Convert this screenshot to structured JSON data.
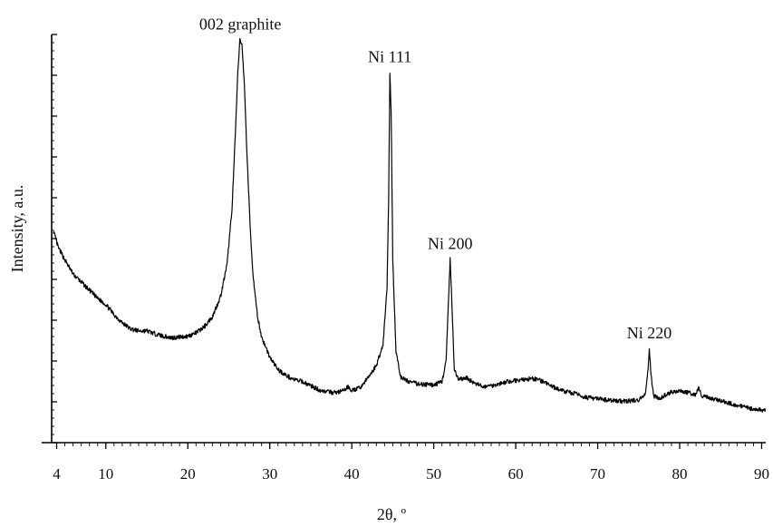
{
  "chart_data": {
    "type": "line",
    "xlabel": "2θ, º",
    "ylabel": "Intensity, a.u.",
    "xlim": [
      3.5,
      90.5
    ],
    "ylim": [
      0,
      100
    ],
    "x_ticks": [
      4,
      10,
      20,
      30,
      40,
      50,
      60,
      70,
      80,
      90
    ],
    "grid": false,
    "legend": "none",
    "line_color": "#000000",
    "series": [
      {
        "points": [
          [
            3.6,
            52
          ],
          [
            4.2,
            48
          ],
          [
            5,
            45
          ],
          [
            6,
            41.5
          ],
          [
            7,
            39.5
          ],
          [
            8,
            37.5
          ],
          [
            9,
            35.5
          ],
          [
            10,
            34
          ],
          [
            11,
            31.5
          ],
          [
            12,
            29.5
          ],
          [
            13,
            28
          ],
          [
            14,
            27.5
          ],
          [
            15,
            27.5
          ],
          [
            16,
            26.8
          ],
          [
            17,
            26.2
          ],
          [
            18,
            25.8
          ],
          [
            19,
            26
          ],
          [
            20,
            26.2
          ],
          [
            21,
            27
          ],
          [
            22,
            28.5
          ],
          [
            23,
            31
          ],
          [
            24,
            36
          ],
          [
            24.8,
            44
          ],
          [
            25.4,
            58
          ],
          [
            25.8,
            76
          ],
          [
            26.1,
            91
          ],
          [
            26.35,
            99
          ],
          [
            26.6,
            98
          ],
          [
            26.9,
            88
          ],
          [
            27.2,
            72
          ],
          [
            27.6,
            53
          ],
          [
            28,
            40
          ],
          [
            28.5,
            31
          ],
          [
            29,
            26
          ],
          [
            30,
            21
          ],
          [
            31,
            18
          ],
          [
            32,
            16.5
          ],
          [
            33,
            15.5
          ],
          [
            34,
            15
          ],
          [
            35,
            14
          ],
          [
            36,
            13
          ],
          [
            37,
            12.5
          ],
          [
            38,
            12.3
          ],
          [
            39,
            12.8
          ],
          [
            39.6,
            13.8
          ],
          [
            40,
            12.8
          ],
          [
            41,
            13.5
          ],
          [
            42,
            16
          ],
          [
            43,
            19
          ],
          [
            43.8,
            24
          ],
          [
            44.3,
            38
          ],
          [
            44.5,
            60
          ],
          [
            44.65,
            91
          ],
          [
            44.8,
            82
          ],
          [
            45.0,
            45
          ],
          [
            45.4,
            22
          ],
          [
            46,
            16
          ],
          [
            47,
            15
          ],
          [
            48,
            14.5
          ],
          [
            49,
            14.3
          ],
          [
            50,
            14.2
          ],
          [
            51,
            15
          ],
          [
            51.5,
            20
          ],
          [
            51.8,
            35
          ],
          [
            52.0,
            45
          ],
          [
            52.2,
            35
          ],
          [
            52.5,
            18
          ],
          [
            53,
            15.5
          ],
          [
            54,
            16
          ],
          [
            55,
            14.5
          ],
          [
            56,
            13.8
          ],
          [
            57,
            14
          ],
          [
            58,
            14.5
          ],
          [
            59,
            15
          ],
          [
            60,
            15.3
          ],
          [
            61,
            15.5
          ],
          [
            62,
            15.8
          ],
          [
            63,
            15.3
          ],
          [
            64,
            14.3
          ],
          [
            65,
            13.3
          ],
          [
            66,
            12.6
          ],
          [
            67,
            12.2
          ],
          [
            68,
            11.5
          ],
          [
            69,
            11
          ],
          [
            70,
            10.8
          ],
          [
            71,
            10.5
          ],
          [
            72,
            10.3
          ],
          [
            73,
            10.2
          ],
          [
            74,
            10.3
          ],
          [
            75,
            10.5
          ],
          [
            75.8,
            12
          ],
          [
            76.1,
            17
          ],
          [
            76.3,
            23
          ],
          [
            76.5,
            17
          ],
          [
            76.8,
            11.5
          ],
          [
            77.5,
            10.8
          ],
          [
            78,
            11.5
          ],
          [
            79,
            12.5
          ],
          [
            80,
            12.8
          ],
          [
            81,
            12.3
          ],
          [
            82,
            11.8
          ],
          [
            82.3,
            13.5
          ],
          [
            82.6,
            11.8
          ],
          [
            83,
            11.3
          ],
          [
            84,
            10.8
          ],
          [
            85,
            10.3
          ],
          [
            86,
            9.7
          ],
          [
            87,
            9.2
          ],
          [
            88,
            8.7
          ],
          [
            89,
            8.3
          ],
          [
            90,
            8
          ],
          [
            90.5,
            7.9
          ]
        ]
      }
    ],
    "annotations": [
      {
        "text": "002 graphite",
        "x": 26.4,
        "y": 99
      },
      {
        "text": "Ni 111",
        "x": 44.65,
        "y": 91
      },
      {
        "text": "Ni 200",
        "x": 52.0,
        "y": 45
      },
      {
        "text": "Ni 220",
        "x": 76.3,
        "y": 23
      }
    ]
  }
}
